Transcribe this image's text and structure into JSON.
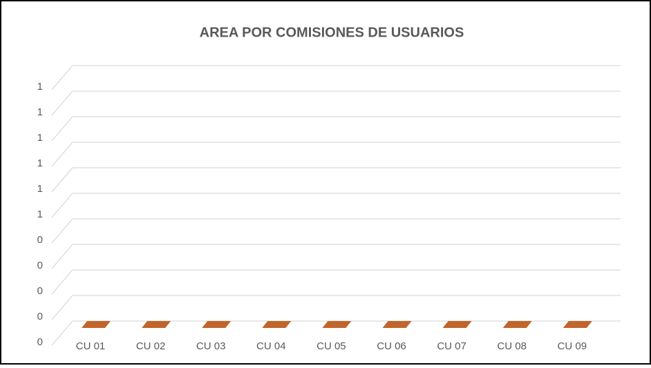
{
  "chart_data": {
    "type": "bar3d",
    "title": "AREA POR COMISIONES DE USUARIOS",
    "categories": [
      "CU 01",
      "CU 02",
      "CU 03",
      "CU 04",
      "CU 05",
      "CU 06",
      "CU 07",
      "CU 08",
      "CU 09"
    ],
    "values": [
      0,
      0,
      0,
      0,
      0,
      0,
      0,
      0,
      0
    ],
    "color": "#c0652b",
    "ylim": [
      0,
      1
    ],
    "yticks": [
      0,
      {
        "value": 0.1,
        "label": "0"
      },
      {
        "value": 0.2,
        "label": "0"
      },
      {
        "value": 0.3,
        "label": "0"
      },
      {
        "value": 0.4,
        "label": "0"
      },
      {
        "value": 0.5,
        "label": "1"
      },
      {
        "value": 0.6,
        "label": "1"
      },
      {
        "value": 0.7,
        "label": "1"
      },
      {
        "value": 0.8,
        "label": "1"
      },
      {
        "value": 0.9,
        "label": "1"
      },
      1
    ],
    "grid": true
  }
}
